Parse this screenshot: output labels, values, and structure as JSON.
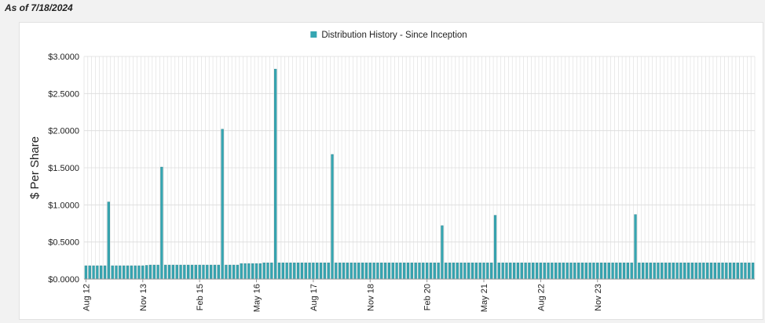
{
  "header": {
    "as_of": "As of 7/18/2024"
  },
  "colors": {
    "bar": "#35a6b2",
    "bar_stroke": "#2b7f88",
    "grid": "#dcdcdc"
  },
  "chart_data": {
    "type": "bar",
    "title": "",
    "legend": {
      "label": "Distribution History - Since Inception",
      "position": "top-center"
    },
    "ylabel": "$ Per Share",
    "xlabel": "",
    "ylim": [
      0,
      3.0
    ],
    "y_ticks": [
      0,
      0.5,
      1.0,
      1.5,
      2.0,
      2.5,
      3.0
    ],
    "y_tick_labels": [
      "$0.0000",
      "$0.5000",
      "$1.0000",
      "$1.5000",
      "$2.0000",
      "$2.5000",
      "$3.0000"
    ],
    "x_tick_labels": [
      {
        "label": "Aug 12",
        "index": 0
      },
      {
        "label": "Nov 13",
        "index": 15
      },
      {
        "label": "Feb 15",
        "index": 30
      },
      {
        "label": "May 16",
        "index": 45
      },
      {
        "label": "Aug 17",
        "index": 60
      },
      {
        "label": "Nov 18",
        "index": 75
      },
      {
        "label": "Feb 20",
        "index": 90
      },
      {
        "label": "May 21",
        "index": 105
      },
      {
        "label": "Aug 22",
        "index": 120
      },
      {
        "label": "Nov 23",
        "index": 135
      }
    ],
    "series": [
      {
        "name": "Distribution History - Since Inception",
        "values": [
          0.18,
          0.18,
          0.18,
          0.18,
          0.18,
          0.18,
          1.04,
          0.18,
          0.18,
          0.18,
          0.18,
          0.18,
          0.18,
          0.18,
          0.18,
          0.18,
          0.185,
          0.19,
          0.19,
          0.19,
          1.51,
          0.19,
          0.19,
          0.19,
          0.19,
          0.19,
          0.19,
          0.19,
          0.19,
          0.19,
          0.19,
          0.19,
          0.19,
          0.19,
          0.19,
          0.19,
          2.02,
          0.19,
          0.19,
          0.19,
          0.19,
          0.21,
          0.21,
          0.21,
          0.21,
          0.21,
          0.21,
          0.22,
          0.22,
          0.22,
          2.83,
          0.22,
          0.22,
          0.22,
          0.22,
          0.22,
          0.22,
          0.22,
          0.22,
          0.22,
          0.22,
          0.22,
          0.22,
          0.22,
          0.22,
          1.68,
          0.22,
          0.22,
          0.22,
          0.22,
          0.22,
          0.22,
          0.22,
          0.22,
          0.22,
          0.22,
          0.22,
          0.22,
          0.22,
          0.22,
          0.22,
          0.22,
          0.22,
          0.22,
          0.22,
          0.22,
          0.22,
          0.22,
          0.22,
          0.22,
          0.22,
          0.22,
          0.22,
          0.22,
          0.72,
          0.22,
          0.22,
          0.22,
          0.22,
          0.22,
          0.22,
          0.22,
          0.22,
          0.22,
          0.22,
          0.22,
          0.22,
          0.22,
          0.86,
          0.22,
          0.22,
          0.22,
          0.22,
          0.22,
          0.22,
          0.22,
          0.22,
          0.22,
          0.22,
          0.22,
          0.22,
          0.22,
          0.22,
          0.22,
          0.22,
          0.22,
          0.22,
          0.22,
          0.22,
          0.22,
          0.22,
          0.22,
          0.22,
          0.22,
          0.22,
          0.22,
          0.22,
          0.22,
          0.22,
          0.22,
          0.22,
          0.22,
          0.22,
          0.22,
          0.22,
          0.87,
          0.22,
          0.22,
          0.22,
          0.22,
          0.22,
          0.22,
          0.22,
          0.22,
          0.22,
          0.22,
          0.22,
          0.22,
          0.22,
          0.22,
          0.22,
          0.22,
          0.22,
          0.22,
          0.22,
          0.22,
          0.22,
          0.22,
          0.22,
          0.22,
          0.22,
          0.22,
          0.22,
          0.22,
          0.22,
          0.22,
          0.22
        ]
      }
    ]
  }
}
